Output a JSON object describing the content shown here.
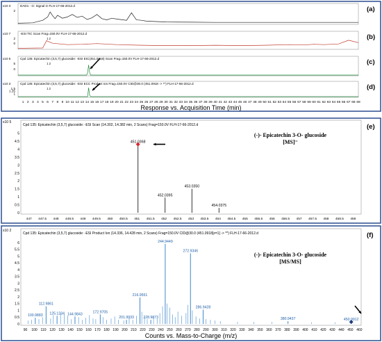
{
  "chart_data": [
    {
      "type": "line",
      "panel": "(a)",
      "title": "DAD1 - G: Signal G FLH-17-66-2012.d",
      "y_exponent": "x10 3",
      "yticks": [
        "2"
      ],
      "color": "#222222",
      "x": [
        0,
        3,
        5,
        6,
        6.5,
        7,
        7.5,
        8,
        9,
        10,
        11,
        12,
        13,
        14,
        15,
        16,
        17,
        18,
        19,
        20,
        22,
        23,
        24,
        25,
        26,
        28,
        30,
        35,
        40,
        45,
        50,
        55,
        60,
        65,
        69
      ],
      "y": [
        0.1,
        0.2,
        0.8,
        1.6,
        2.8,
        1.9,
        1.2,
        2.0,
        1.3,
        1.6,
        2.2,
        1.5,
        1.8,
        1.0,
        1.4,
        2.2,
        1.2,
        0.9,
        1.3,
        1.1,
        0.8,
        2.6,
        0.9,
        0.8,
        0.6,
        0.5,
        0.4,
        0.35,
        0.3,
        0.3,
        0.3,
        0.3,
        0.3,
        0.3,
        0.3
      ],
      "ylim": [
        0,
        3.5
      ]
    },
    {
      "type": "line",
      "panel": "(b)",
      "title": "-ESI TIC Scan Frag=150.0V FLH-17-66-2012.d",
      "y_exponent": "x10 7",
      "yticks": [
        "2",
        "0"
      ],
      "peak_label": "1 2",
      "color": "#c0392b",
      "x": [
        0,
        5,
        5.8,
        6,
        7,
        10,
        13,
        16,
        20,
        25,
        30,
        35,
        40,
        45,
        50,
        55,
        58,
        60,
        62,
        65,
        67,
        69
      ],
      "y": [
        0.1,
        0.2,
        2.4,
        2.2,
        1.6,
        1.2,
        1.3,
        1.5,
        1.2,
        1.0,
        0.9,
        0.9,
        1.0,
        0.9,
        1.0,
        1.2,
        1.1,
        1.3,
        1.2,
        1.4,
        2.5,
        1.8
      ],
      "ylim": [
        0,
        3.5
      ]
    },
    {
      "type": "line",
      "panel": "(c)",
      "title": "Cpd 135: Epicatechin (3,5,7) glucoside: -ESI EIC(451.0918) Scan Frag=150.0V FLH-17-66-2012.d",
      "y_exponent": "x10 5",
      "yticks": [
        "5",
        "0"
      ],
      "peak_label": "1 2",
      "color": "#1e8a3a",
      "x": [
        0,
        13.9,
        14.1,
        14.3,
        14.5,
        14.7,
        69
      ],
      "y": [
        0,
        0,
        1.0,
        4.6,
        1.2,
        0,
        0
      ],
      "ylim": [
        0,
        6
      ]
    },
    {
      "type": "line",
      "panel": "(d)",
      "title": "Cpd 135: Epicatechin (3,5,7) glucoside: -ESI ECC Product Ion Frag=150.0V CID@30.0 (451.0918 -> **) FLH-17-66-2012.d",
      "y_exponent": "x10 3",
      "yticks": [
        "1.5",
        "1.25",
        "1"
      ],
      "peak_label": "1 2",
      "color": "#1e8a3a",
      "x": [
        0,
        14.1,
        14.3,
        14.5,
        14.7,
        69
      ],
      "y": [
        1.0,
        1.0,
        1.55,
        1.1,
        1.0,
        1.0
      ],
      "ylim": [
        1,
        1.6
      ]
    }
  ],
  "tic_axis": {
    "ticks": [
      "1",
      "2",
      "3",
      "4",
      "5",
      "6",
      "7",
      "8",
      "9",
      "10",
      "11",
      "12",
      "13",
      "14",
      "15",
      "16",
      "17",
      "18",
      "19",
      "20",
      "21",
      "22",
      "23",
      "24",
      "25",
      "26",
      "27",
      "28",
      "29",
      "30",
      "31",
      "32",
      "33",
      "34",
      "35",
      "36",
      "37",
      "38",
      "39",
      "40",
      "41",
      "42",
      "43",
      "44",
      "45",
      "46",
      "47",
      "48",
      "49",
      "50",
      "51",
      "52",
      "53",
      "54",
      "55",
      "56",
      "57",
      "58",
      "59",
      "60",
      "61",
      "62",
      "63",
      "64",
      "65",
      "66",
      "67",
      "68",
      "69"
    ],
    "xlabel": "Response vs. Acquisition Time (min)",
    "xlim": [
      0,
      69
    ]
  },
  "ms_scan": {
    "type": "bar",
    "panel": "(e)",
    "title": "Cpd 135: Epicatechin (3,5,7) glucoside: -ESI Scan (14.302, 14.382 min, 2 Scans) Frag=150.0V FLH-17-66-2012.d",
    "y_exponent": "x10 5",
    "yticks": [
      "5",
      "4.5",
      "4",
      "3.5",
      "3",
      "2.5",
      "2",
      "1.5",
      "1",
      "0.5",
      "0"
    ],
    "ylim": [
      0,
      5.2
    ],
    "xlim": [
      446.7,
      459.3
    ],
    "xticks": [
      "447",
      "447.5",
      "448",
      "448.5",
      "449",
      "449.5",
      "450",
      "450.5",
      "451",
      "451.5",
      "452",
      "452.5",
      "453",
      "453.5",
      "454",
      "454.5",
      "455",
      "455.5",
      "456",
      "456.5",
      "457",
      "457.5",
      "458",
      "458.5",
      "459"
    ],
    "annotation_line1": "(-)- Epicatechin 3-O- glucoside",
    "annotation_line2": "[MS]⁻",
    "peaks": [
      {
        "x": 451.0368,
        "y": 4.3,
        "label": "451.0368"
      },
      {
        "x": 452.0395,
        "y": 0.95,
        "label": "452.0395"
      },
      {
        "x": 453.035,
        "y": 1.5,
        "label": "453.0350"
      },
      {
        "x": 454.0375,
        "y": 0.3,
        "label": "454.0375"
      }
    ]
  },
  "ms_product": {
    "type": "bar",
    "panel": "(f)",
    "title": "Cpd 135: Epicatechin (3,5,7) glucoside: -ESI Product Ion (14.336, 14.428 min, 2 Scans) Frag=150.0V CID@30.0 (451.0918[z=1] -> **) FLH-17-66-2012.d",
    "y_exponent": "x10 2",
    "yticks": [
      "6",
      "5.5",
      "5",
      "4.5",
      "4",
      "3.5",
      "3",
      "2.5",
      "2",
      "1.5",
      "1",
      "0.5",
      "0"
    ],
    "ylim": [
      0,
      6.3
    ],
    "xlim": [
      85,
      462
    ],
    "xticks": [
      "90",
      "100",
      "110",
      "120",
      "130",
      "140",
      "150",
      "160",
      "170",
      "180",
      "190",
      "200",
      "210",
      "220",
      "230",
      "240",
      "250",
      "260",
      "270",
      "280",
      "290",
      "300",
      "310",
      "320",
      "330",
      "340",
      "350",
      "360",
      "370",
      "380",
      "390",
      "400",
      "410",
      "420",
      "430",
      "440",
      "450",
      "460"
    ],
    "xlabel": "Counts vs. Mass-to-Charge (m/z)",
    "annotation_line1": "(-)- Epicatechin 3-O- glucoside",
    "annotation_line2": "[MS/MS]",
    "peaks": [
      {
        "x": 100.9883,
        "y": 0.45,
        "label": "100.9883"
      },
      {
        "x": 112.9861,
        "y": 1.3,
        "label": "112.9861"
      },
      {
        "x": 125.1234,
        "y": 0.6,
        "label": "125.1234"
      },
      {
        "x": 144.9843,
        "y": 0.55,
        "label": "144.9843"
      },
      {
        "x": 172.9705,
        "y": 0.7,
        "label": "172.9705"
      },
      {
        "x": 201.9933,
        "y": 0.3,
        "label": "201.9933"
      },
      {
        "x": 216.9551,
        "y": 1.95,
        "label": "216.9551"
      },
      {
        "x": 228.9873,
        "y": 0.3,
        "label": "228.9873"
      },
      {
        "x": 244.9449,
        "y": 5.9,
        "label": "244.9449"
      },
      {
        "x": 272.9346,
        "y": 5.2,
        "label": "272.9346"
      },
      {
        "x": 286.9428,
        "y": 1.05,
        "label": "286.9428"
      },
      {
        "x": 380.9437,
        "y": 0.2,
        "label": "380.9437"
      },
      {
        "x": 450.9912,
        "y": 0.15,
        "label": "450.9912"
      }
    ],
    "minor_peaks": [
      {
        "x": 93,
        "y": 0.25
      },
      {
        "x": 97,
        "y": 0.3
      },
      {
        "x": 105,
        "y": 0.35
      },
      {
        "x": 109,
        "y": 0.5
      },
      {
        "x": 118,
        "y": 0.4
      },
      {
        "x": 121,
        "y": 0.65
      },
      {
        "x": 129,
        "y": 0.8
      },
      {
        "x": 133,
        "y": 0.7
      },
      {
        "x": 137,
        "y": 0.6
      },
      {
        "x": 141,
        "y": 0.35
      },
      {
        "x": 149,
        "y": 0.5
      },
      {
        "x": 153,
        "y": 0.3
      },
      {
        "x": 157,
        "y": 0.45
      },
      {
        "x": 161,
        "y": 0.65
      },
      {
        "x": 165,
        "y": 0.4
      },
      {
        "x": 168,
        "y": 0.35
      },
      {
        "x": 176,
        "y": 0.5
      },
      {
        "x": 180,
        "y": 0.3
      },
      {
        "x": 185,
        "y": 0.4
      },
      {
        "x": 189,
        "y": 0.55
      },
      {
        "x": 193,
        "y": 0.3
      },
      {
        "x": 199,
        "y": 0.25
      },
      {
        "x": 205,
        "y": 0.45
      },
      {
        "x": 209,
        "y": 0.3
      },
      {
        "x": 213,
        "y": 0.6
      },
      {
        "x": 219,
        "y": 0.9
      },
      {
        "x": 222,
        "y": 0.5
      },
      {
        "x": 225,
        "y": 0.35
      },
      {
        "x": 232,
        "y": 0.5
      },
      {
        "x": 236,
        "y": 0.4
      },
      {
        "x": 239,
        "y": 0.8
      },
      {
        "x": 242,
        "y": 1.3
      },
      {
        "x": 247,
        "y": 1.5
      },
      {
        "x": 250,
        "y": 1.2
      },
      {
        "x": 253,
        "y": 0.7
      },
      {
        "x": 256,
        "y": 0.5
      },
      {
        "x": 259,
        "y": 0.9
      },
      {
        "x": 263,
        "y": 0.6
      },
      {
        "x": 268,
        "y": 0.8
      },
      {
        "x": 270,
        "y": 1.4
      },
      {
        "x": 275,
        "y": 1.0
      },
      {
        "x": 279,
        "y": 0.55
      },
      {
        "x": 283,
        "y": 0.4
      },
      {
        "x": 290,
        "y": 0.35
      },
      {
        "x": 295,
        "y": 0.3
      },
      {
        "x": 300,
        "y": 0.25
      },
      {
        "x": 306,
        "y": 0.2
      },
      {
        "x": 325,
        "y": 0.15
      },
      {
        "x": 343,
        "y": 0.15
      },
      {
        "x": 363,
        "y": 0.15
      },
      {
        "x": 407,
        "y": 0.12
      },
      {
        "x": 433,
        "y": 0.12
      }
    ]
  }
}
